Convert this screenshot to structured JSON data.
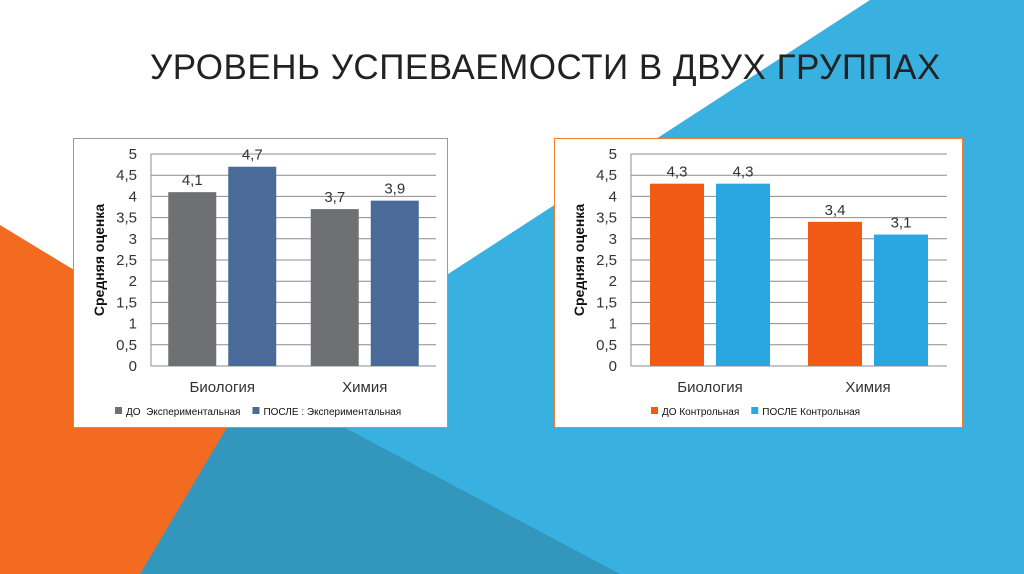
{
  "title": "УРОВЕНЬ УСПЕВАЕМОСТИ В ДВУХ ГРУППАХ",
  "background_colors": {
    "orange": "#f26b21",
    "light_blue": "#38b0e0",
    "dark_blue": "#3296bd"
  },
  "chart_data": [
    {
      "type": "bar",
      "ylabel": "Средняя оценка",
      "categories": [
        "Биология",
        "Химия"
      ],
      "ylim": [
        0,
        5
      ],
      "yticks": [
        "0",
        "0,5",
        "1",
        "1,5",
        "2",
        "2,5",
        "3",
        "3,5",
        "4",
        "4,5",
        "5"
      ],
      "grid": true,
      "legend_position": "bottom",
      "series": [
        {
          "name": "ДО  Экспериментальная",
          "values": [
            4.1,
            3.7
          ],
          "labels": [
            "4,1",
            "3,7"
          ],
          "color": "#6e7074"
        },
        {
          "name": "ПОСЛЕ : Экспериментальная",
          "values": [
            4.7,
            3.9
          ],
          "labels": [
            "4,7",
            "3,9"
          ],
          "color": "#4a6a9a"
        }
      ]
    },
    {
      "type": "bar",
      "ylabel": "Средняя оценка",
      "categories": [
        "Биология",
        "Химия"
      ],
      "ylim": [
        0,
        5
      ],
      "yticks": [
        "0",
        "0,5",
        "1",
        "1,5",
        "2",
        "2,5",
        "3",
        "3,5",
        "4",
        "4,5",
        "5"
      ],
      "grid": true,
      "legend_position": "bottom",
      "series": [
        {
          "name": "ДО Контрольная",
          "values": [
            4.3,
            3.4
          ],
          "labels": [
            "4,3",
            "3,4"
          ],
          "color": "#f05a14"
        },
        {
          "name": "ПОСЛЕ Контрольная",
          "values": [
            4.3,
            3.1
          ],
          "labels": [
            "4,3",
            "3,1"
          ],
          "color": "#2aa6e0"
        }
      ]
    }
  ]
}
